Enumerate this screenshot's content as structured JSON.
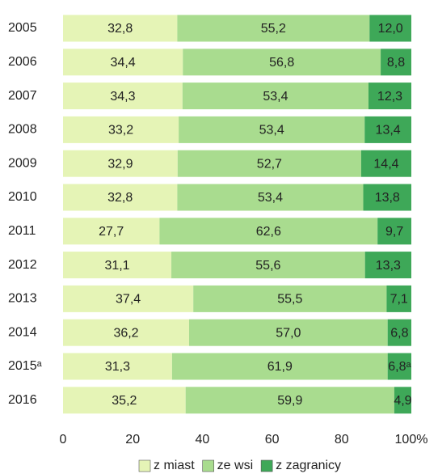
{
  "chart_data": {
    "type": "stacked_bar_horizontal",
    "categories": [
      "2005",
      "2006",
      "2007",
      "2008",
      "2009",
      "2010",
      "2011",
      "2012",
      "2013",
      "2014",
      "2015ᵃ",
      "2016"
    ],
    "series": [
      {
        "name": "z miast",
        "color": "#e5f4b6",
        "values": [
          32.8,
          34.4,
          34.3,
          33.2,
          32.9,
          32.8,
          27.7,
          31.1,
          37.4,
          36.2,
          31.3,
          35.2
        ],
        "value_labels": [
          "32,8",
          "34,4",
          "34,3",
          "33,2",
          "32,9",
          "32,8",
          "27,7",
          "31,1",
          "37,4",
          "36,2",
          "31,3",
          "35,2"
        ]
      },
      {
        "name": "ze wsi",
        "color": "#a9dc8f",
        "values": [
          55.2,
          56.8,
          53.4,
          53.4,
          52.7,
          53.4,
          62.6,
          55.6,
          55.5,
          57.0,
          61.9,
          59.9
        ],
        "value_labels": [
          "55,2",
          "56,8",
          "53,4",
          "53,4",
          "52,7",
          "53,4",
          "62,6",
          "55,6",
          "55,5",
          "57,0",
          "61,9",
          "59,9"
        ]
      },
      {
        "name": "z zagranicy",
        "color": "#3ea858",
        "values": [
          12.0,
          8.8,
          12.3,
          13.4,
          14.4,
          13.8,
          9.7,
          13.3,
          7.1,
          6.8,
          6.8,
          4.9
        ],
        "value_labels": [
          "12,0",
          "8,8",
          "12,3",
          "13,4",
          "14,4",
          "13,8",
          "9,7",
          "13,3",
          "7,1",
          "6,8",
          "6,8ᵃ",
          "4,9"
        ]
      }
    ],
    "xlim": [
      0,
      100
    ],
    "xticks": [
      0,
      20,
      40,
      60,
      80,
      {
        "value": 100,
        "label": "100%"
      }
    ],
    "legend": "bottom"
  }
}
